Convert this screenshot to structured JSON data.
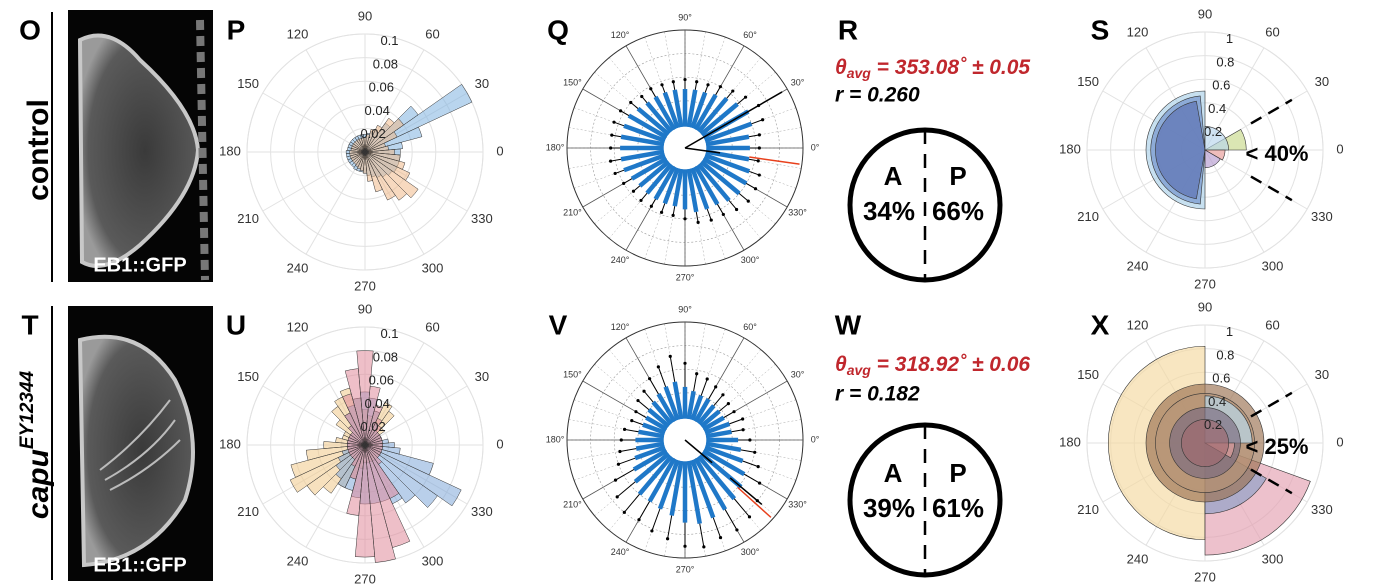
{
  "images": [
    {
      "letter": "O",
      "label": "EB1::GFP"
    },
    {
      "letter": "T",
      "label": "EB1::GFP"
    }
  ],
  "row_labels": [
    {
      "base": "control"
    },
    {
      "base": "capu",
      "sup": "EY12344"
    }
  ],
  "stats": [
    {
      "letter": "R",
      "theta_symbol": "θ",
      "theta_sub": "avg",
      "theta_text": " = 353.08˚ ± 0.05",
      "r_text": "r = 0.260",
      "left_label": "A",
      "right_label": "P",
      "left_pct": "34%",
      "right_pct": "66%"
    },
    {
      "letter": "W",
      "theta_symbol": "θ",
      "theta_sub": "avg",
      "theta_text": " = 318.92˚ ± 0.06",
      "r_text": "r = 0.182",
      "left_label": "A",
      "right_label": "P",
      "left_pct": "39%",
      "right_pct": "61%"
    }
  ],
  "chart_data": [
    {
      "type": "rose",
      "letter": "P",
      "rlim": [
        0,
        0.1
      ],
      "rticks": [
        0.02,
        0.04,
        0.06,
        0.08,
        0.1
      ],
      "thetaticks": [
        0,
        30,
        60,
        90,
        120,
        150,
        180,
        210,
        240,
        270,
        300,
        330
      ],
      "series": [
        {
          "color": "#7fb3e0",
          "values": [
            0.03,
            0.032,
            0.05,
            0.1,
            0.055,
            0.03,
            0.02,
            0.018,
            0.016,
            0.015,
            0.015,
            0.015,
            0.015,
            0.015,
            0.015,
            0.015,
            0.015,
            0.015,
            0.016,
            0.016,
            0.016,
            0.016,
            0.016,
            0.016,
            0.017,
            0.017,
            0.017,
            0.018,
            0.02,
            0.022,
            0.024,
            0.026,
            0.028,
            0.03,
            0.03,
            0.03
          ]
        },
        {
          "color": "#f0b98a",
          "values": [
            0.025,
            0.02,
            0.018,
            0.03,
            0.04,
            0.035,
            0.025,
            0.02,
            0.015,
            0.012,
            0.012,
            0.012,
            0.012,
            0.012,
            0.012,
            0.012,
            0.012,
            0.012,
            0.013,
            0.013,
            0.013,
            0.013,
            0.013,
            0.013,
            0.014,
            0.015,
            0.016,
            0.018,
            0.025,
            0.035,
            0.045,
            0.05,
            0.055,
            0.042,
            0.035,
            0.03
          ]
        }
      ]
    },
    {
      "type": "spokes",
      "letter": "Q",
      "rlim": [
        0,
        1
      ],
      "thetaticks": [
        {
          "value": 0,
          "label": "0°"
        },
        {
          "value": 30,
          "label": "30°"
        },
        {
          "value": 60,
          "label": "60°"
        },
        {
          "value": 90,
          "label": "90°"
        },
        {
          "value": 120,
          "label": "120°"
        },
        {
          "value": 150,
          "label": "150°"
        },
        {
          "value": 180,
          "label": "180°"
        },
        {
          "value": 210,
          "label": "210°"
        },
        {
          "value": 240,
          "label": "240°"
        },
        {
          "value": 270,
          "label": "270°"
        },
        {
          "value": 300,
          "label": "300°"
        },
        {
          "value": 330,
          "label": "330°"
        }
      ],
      "spokes": {
        "color": "#1f78c8",
        "values": [
          0.55,
          0.55,
          0.6,
          0.62,
          0.58,
          0.55,
          0.52,
          0.5,
          0.5,
          0.5,
          0.5,
          0.5,
          0.5,
          0.5,
          0.52,
          0.55,
          0.55,
          0.55,
          0.55,
          0.55,
          0.55,
          0.52,
          0.5,
          0.5,
          0.5,
          0.5,
          0.5,
          0.52,
          0.55,
          0.55,
          0.55,
          0.58,
          0.6,
          0.6,
          0.58,
          0.55
        ],
        "errors": [
          0.08,
          0.09,
          0.1,
          0.1,
          0.09,
          0.08,
          0.08,
          0.07,
          0.07,
          0.08,
          0.07,
          0.07,
          0.08,
          0.07,
          0.08,
          0.08,
          0.09,
          0.08,
          0.08,
          0.09,
          0.08,
          0.08,
          0.07,
          0.08,
          0.07,
          0.08,
          0.08,
          0.08,
          0.09,
          0.1,
          0.1,
          0.1,
          0.1,
          0.09,
          0.09,
          0.08
        ]
      },
      "lines": [
        {
          "angle": 30,
          "r0": 0.0,
          "r1": 0.95,
          "color": "#000000"
        },
        {
          "angle": 352,
          "r0": 0.0,
          "r1": 0.3,
          "color": "#000000"
        },
        {
          "angle": 352,
          "r0": 0.55,
          "r1": 0.98,
          "color": "#e8401c"
        }
      ]
    },
    {
      "type": "sectors",
      "letter": "S",
      "rlim": [
        0,
        1
      ],
      "rticks": [
        0.2,
        0.4,
        0.6,
        0.8,
        1
      ],
      "thetaticks": [
        0,
        30,
        60,
        90,
        120,
        150,
        180,
        210,
        240,
        270,
        300,
        330
      ],
      "annotation": "< 40%",
      "sectors": [
        {
          "start": 90,
          "end": 270,
          "r": 0.5,
          "color": "#a9cfe8"
        },
        {
          "start": 95,
          "end": 265,
          "r": 0.46,
          "color": "#6f8fc9"
        },
        {
          "start": 100,
          "end": 260,
          "r": 0.42,
          "color": "#5a6fb0"
        },
        {
          "start": 0,
          "end": 30,
          "r": 0.35,
          "color": "#c7d88a"
        },
        {
          "start": 0,
          "end": 90,
          "r": 0.2,
          "color": "#b9d6ec"
        },
        {
          "start": 330,
          "end": 360,
          "r": 0.17,
          "color": "#e79a96"
        },
        {
          "start": 270,
          "end": 330,
          "r": 0.15,
          "color": "#b59bd0"
        }
      ]
    },
    {
      "type": "rose",
      "letter": "U",
      "rlim": [
        0,
        0.1
      ],
      "rticks": [
        0.02,
        0.04,
        0.06,
        0.08,
        0.1
      ],
      "thetaticks": [
        0,
        30,
        60,
        90,
        120,
        150,
        180,
        210,
        240,
        270,
        300,
        330
      ],
      "series": [
        {
          "color": "#f0c888",
          "values": [
            0.015,
            0.015,
            0.015,
            0.015,
            0.02,
            0.035,
            0.04,
            0.03,
            0.025,
            0.03,
            0.04,
            0.05,
            0.045,
            0.04,
            0.03,
            0.02,
            0.02,
            0.025,
            0.035,
            0.05,
            0.065,
            0.07,
            0.06,
            0.05,
            0.04,
            0.03,
            0.02,
            0.015,
            0.015,
            0.015,
            0.015,
            0.015,
            0.015,
            0.015,
            0.015,
            0.015
          ]
        },
        {
          "color": "#7fa8d8",
          "values": [
            0.025,
            0.02,
            0.015,
            0.015,
            0.015,
            0.015,
            0.02,
            0.03,
            0.04,
            0.045,
            0.04,
            0.035,
            0.03,
            0.02,
            0.015,
            0.015,
            0.015,
            0.015,
            0.015,
            0.015,
            0.02,
            0.025,
            0.03,
            0.035,
            0.04,
            0.04,
            0.045,
            0.05,
            0.05,
            0.05,
            0.055,
            0.06,
            0.075,
            0.09,
            0.06,
            0.03
          ]
        },
        {
          "color": "#e08a9a",
          "values": [
            0.015,
            0.015,
            0.015,
            0.015,
            0.015,
            0.02,
            0.025,
            0.035,
            0.05,
            0.08,
            0.065,
            0.045,
            0.03,
            0.02,
            0.015,
            0.015,
            0.015,
            0.015,
            0.015,
            0.015,
            0.015,
            0.015,
            0.015,
            0.015,
            0.02,
            0.03,
            0.06,
            0.095,
            0.1,
            0.09,
            0.05,
            0.02,
            0.015,
            0.015,
            0.015,
            0.015
          ]
        }
      ]
    },
    {
      "type": "spokes",
      "letter": "V",
      "rlim": [
        0,
        1
      ],
      "thetaticks": [
        {
          "value": 0,
          "label": "0°"
        },
        {
          "value": 30,
          "label": "30°"
        },
        {
          "value": 60,
          "label": "60°"
        },
        {
          "value": 90,
          "label": "90°"
        },
        {
          "value": 120,
          "label": "120°"
        },
        {
          "value": 150,
          "label": "150°"
        },
        {
          "value": 180,
          "label": "180°"
        },
        {
          "value": 210,
          "label": "210°"
        },
        {
          "value": 240,
          "label": "240°"
        },
        {
          "value": 270,
          "label": "270°"
        },
        {
          "value": 300,
          "label": "300°"
        },
        {
          "value": 330,
          "label": "330°"
        }
      ],
      "spokes": {
        "color": "#1f78c8",
        "values": [
          0.45,
          0.4,
          0.4,
          0.38,
          0.38,
          0.38,
          0.4,
          0.4,
          0.42,
          0.45,
          0.5,
          0.48,
          0.45,
          0.42,
          0.4,
          0.38,
          0.38,
          0.4,
          0.42,
          0.42,
          0.45,
          0.5,
          0.55,
          0.6,
          0.6,
          0.62,
          0.65,
          0.7,
          0.72,
          0.7,
          0.68,
          0.65,
          0.62,
          0.58,
          0.52,
          0.48
        ],
        "errors": [
          0.1,
          0.1,
          0.12,
          0.1,
          0.1,
          0.12,
          0.12,
          0.15,
          0.15,
          0.2,
          0.22,
          0.18,
          0.15,
          0.12,
          0.12,
          0.1,
          0.1,
          0.12,
          0.12,
          0.14,
          0.15,
          0.18,
          0.2,
          0.2,
          0.18,
          0.2,
          0.2,
          0.2,
          0.2,
          0.18,
          0.2,
          0.2,
          0.18,
          0.15,
          0.14,
          0.12
        ]
      },
      "lines": [
        {
          "angle": 320,
          "r0": 0.0,
          "r1": 0.3,
          "color": "#000000"
        },
        {
          "angle": 320,
          "r0": 0.5,
          "r1": 0.85,
          "color": "#000000"
        },
        {
          "angle": 318,
          "r0": 0.6,
          "r1": 0.98,
          "color": "#e8401c"
        }
      ]
    },
    {
      "type": "sectors",
      "letter": "X",
      "rlim": [
        0,
        1
      ],
      "rticks": [
        0.2,
        0.4,
        0.6,
        0.8,
        1
      ],
      "thetaticks": [
        0,
        30,
        60,
        90,
        120,
        150,
        180,
        210,
        240,
        270,
        300,
        330
      ],
      "annotation": "< 25%",
      "sectors": [
        {
          "start": 90,
          "end": 270,
          "r": 0.82,
          "color": "#f5d8a0"
        },
        {
          "start": 270,
          "end": 340,
          "r": 0.95,
          "color": "#e3a0b0"
        },
        {
          "start": 270,
          "end": 330,
          "r": 0.6,
          "color": "#8aa0c8"
        },
        {
          "start": 0,
          "end": 360,
          "r": 0.5,
          "color": "#9a7050"
        },
        {
          "start": 0,
          "end": 360,
          "r": 0.42,
          "color": "#b8967a"
        },
        {
          "start": 0,
          "end": 90,
          "r": 0.4,
          "color": "#b9dcf0"
        },
        {
          "start": 0,
          "end": 360,
          "r": 0.3,
          "color": "#7a6a80"
        },
        {
          "start": 330,
          "end": 360,
          "r": 0.25,
          "color": "#e8a3a0"
        },
        {
          "start": 0,
          "end": 360,
          "r": 0.2,
          "color": "#a06a70"
        }
      ]
    }
  ]
}
